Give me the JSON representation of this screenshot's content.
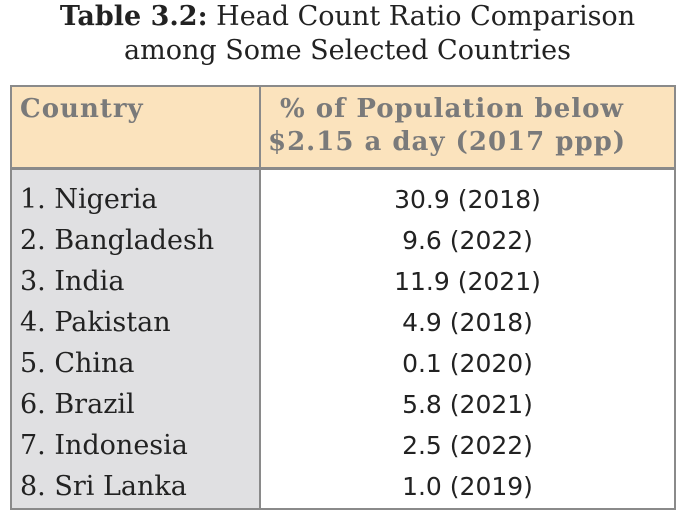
{
  "caption": {
    "label": "Table 3.2:",
    "title_line1": "Head Count Ratio Comparison",
    "title_line2": "among Some  Selected Countries"
  },
  "table": {
    "headers": {
      "country": "Country",
      "population_line1": "% of Population below",
      "population_line2": "$2.15 a day (2017 ppp)"
    },
    "rows": [
      {
        "country": "1. Nigeria",
        "value": "30.9 (2018)"
      },
      {
        "country": "2. Bangladesh",
        "value": "9.6 (2022)"
      },
      {
        "country": "3. India",
        "value": "11.9 (2021)"
      },
      {
        "country": "4. Pakistan",
        "value": "4.9 (2018)"
      },
      {
        "country": "5. China",
        "value": "0.1 (2020)"
      },
      {
        "country": "6. Brazil",
        "value": "5.8 (2021)"
      },
      {
        "country": "7. Indonesia",
        "value": "2.5 (2022)"
      },
      {
        "country": "8. Sri Lanka",
        "value": "1.0 (2019)"
      }
    ]
  },
  "colors": {
    "header_background": "#fbe3bd",
    "country_column_background": "#e0e0e2",
    "border": "#8a8a8a",
    "header_text": "#7a7a7a"
  }
}
